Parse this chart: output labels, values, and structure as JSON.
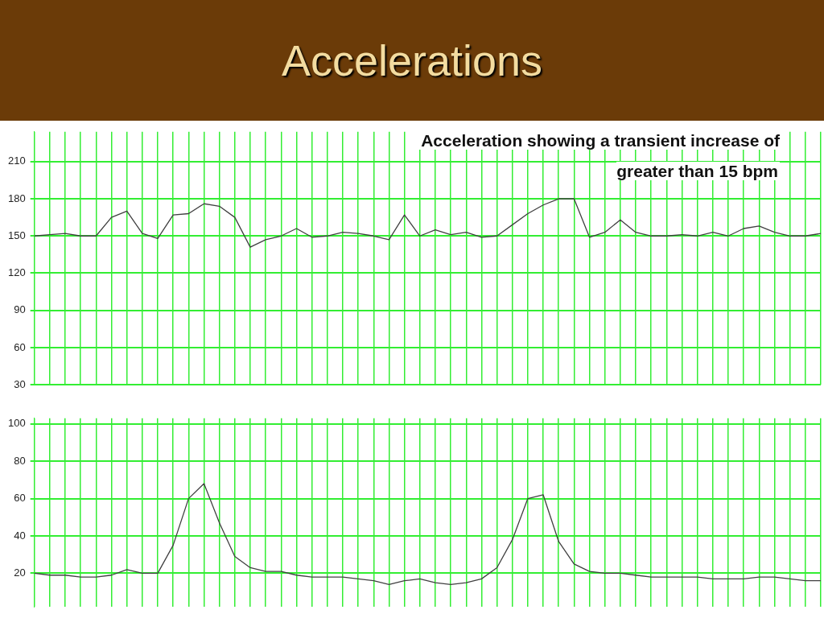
{
  "chart_data": [
    {
      "type": "line",
      "title": "Accelerations",
      "annotations": [
        "Acceleration showing a transient increase of greater than 15 bpm"
      ],
      "categories": [
        null,
        null,
        null,
        null,
        null,
        null,
        null,
        null,
        null,
        null,
        null,
        null,
        null,
        null,
        null,
        null,
        null,
        null,
        null,
        null,
        null,
        null,
        null,
        null,
        null,
        null,
        null,
        null,
        null,
        null,
        null,
        null,
        null,
        null,
        null,
        null,
        null,
        null,
        null,
        null,
        null,
        null,
        null,
        null,
        null,
        null,
        null,
        null,
        null,
        null,
        null,
        null
      ],
      "series": [
        {
          "color": "#404040",
          "values": [
            150,
            151,
            152,
            150,
            150,
            165,
            170,
            152,
            148,
            167,
            168,
            176,
            174,
            165,
            141,
            147,
            150,
            156,
            149,
            150,
            153,
            152,
            150,
            147,
            167,
            150,
            155,
            151,
            153,
            149,
            150,
            159,
            168,
            175,
            180,
            180,
            149,
            153,
            163,
            153,
            150,
            150,
            151,
            150,
            153,
            150,
            156,
            158,
            153,
            150,
            150,
            152
          ]
        }
      ],
      "ylim": [
        30,
        234
      ],
      "yticks": [
        30,
        60,
        90,
        120,
        150,
        180,
        210
      ],
      "tick_labels": "y",
      "grid": true,
      "marker": "none"
    },
    {
      "type": "line",
      "categories": [
        null,
        null,
        null,
        null,
        null,
        null,
        null,
        null,
        null,
        null,
        null,
        null,
        null,
        null,
        null,
        null,
        null,
        null,
        null,
        null,
        null,
        null,
        null,
        null,
        null,
        null,
        null,
        null,
        null,
        null,
        null,
        null,
        null,
        null,
        null,
        null,
        null,
        null,
        null,
        null,
        null,
        null,
        null,
        null,
        null,
        null,
        null,
        null,
        null,
        null,
        null,
        null
      ],
      "series": [
        {
          "color": "#404040",
          "values": [
            20,
            19,
            19,
            18,
            18,
            19,
            22,
            20,
            20,
            35,
            60,
            68,
            47,
            29,
            23,
            21,
            21,
            19,
            18,
            18,
            18,
            17,
            16,
            14,
            16,
            17,
            15,
            14,
            15,
            17,
            23,
            38,
            60,
            62,
            37,
            25,
            21,
            20,
            20,
            19,
            18,
            18,
            18,
            18,
            17,
            17,
            17,
            18,
            18,
            17,
            16,
            16
          ]
        }
      ],
      "ylim": [
        2,
        103
      ],
      "yticks": [
        20,
        40,
        60,
        80,
        100
      ],
      "tick_labels": "y",
      "grid": true,
      "marker": "none"
    }
  ]
}
